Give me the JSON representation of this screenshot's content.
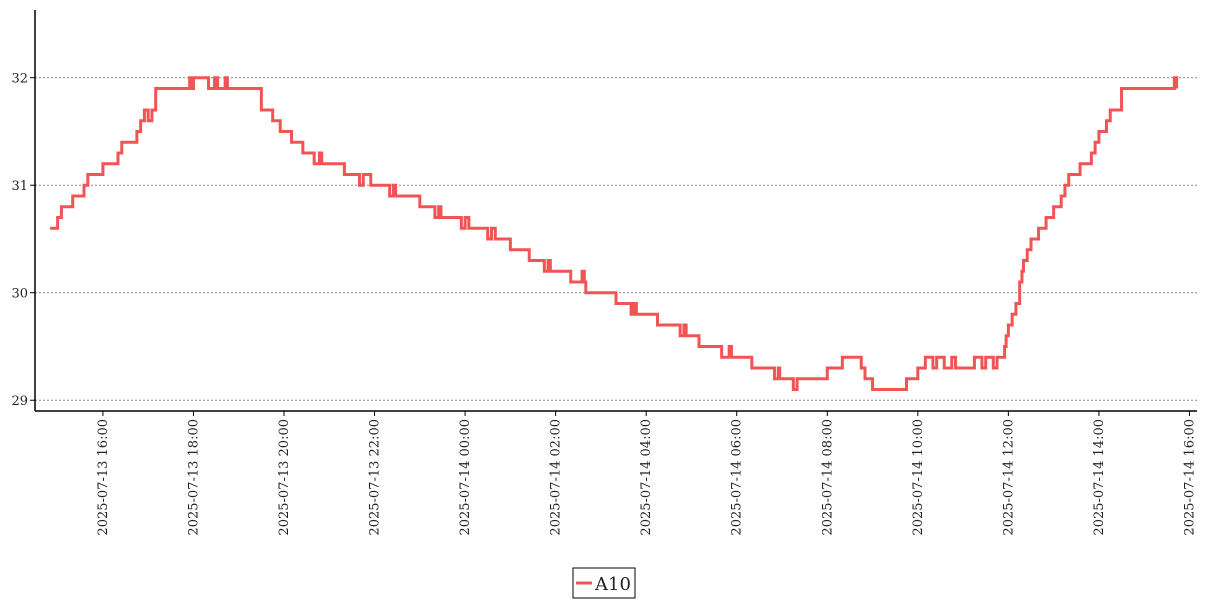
{
  "chart_data": {
    "type": "line",
    "title": "",
    "xlabel": "",
    "ylabel": "",
    "ylim": [
      28.9,
      32.63
    ],
    "xlim": [
      "2025-07-13 14:30",
      "2025-07-14 16:10"
    ],
    "grid": {
      "y": true,
      "x": false,
      "style": "dotted"
    },
    "legend_position": "bottom-center",
    "y_ticks": [
      29,
      30,
      31,
      32
    ],
    "x_ticks": [
      "2025-07-13 16:00",
      "2025-07-13 18:00",
      "2025-07-13 20:00",
      "2025-07-13 22:00",
      "2025-07-14 00:00",
      "2025-07-14 02:00",
      "2025-07-14 04:00",
      "2025-07-14 06:00",
      "2025-07-14 08:00",
      "2025-07-14 10:00",
      "2025-07-14 12:00",
      "2025-07-14 14:00",
      "2025-07-14 16:00"
    ],
    "series": [
      {
        "name": "A10",
        "color": "#f05454",
        "step": true,
        "points": [
          [
            "2025-07-13 14:50",
            30.6
          ],
          [
            "2025-07-13 15:00",
            30.7
          ],
          [
            "2025-07-13 15:05",
            30.8
          ],
          [
            "2025-07-13 15:20",
            30.9
          ],
          [
            "2025-07-13 15:35",
            31.0
          ],
          [
            "2025-07-13 15:40",
            31.1
          ],
          [
            "2025-07-13 16:00",
            31.2
          ],
          [
            "2025-07-13 16:20",
            31.3
          ],
          [
            "2025-07-13 16:25",
            31.4
          ],
          [
            "2025-07-13 16:45",
            31.5
          ],
          [
            "2025-07-13 16:50",
            31.6
          ],
          [
            "2025-07-13 16:55",
            31.7
          ],
          [
            "2025-07-13 17:00",
            31.6
          ],
          [
            "2025-07-13 17:05",
            31.7
          ],
          [
            "2025-07-13 17:10",
            31.9
          ],
          [
            "2025-07-13 17:55",
            32.0
          ],
          [
            "2025-07-13 17:57",
            31.9
          ],
          [
            "2025-07-13 18:00",
            32.0
          ],
          [
            "2025-07-13 18:20",
            31.9
          ],
          [
            "2025-07-13 18:28",
            32.0
          ],
          [
            "2025-07-13 18:32",
            31.9
          ],
          [
            "2025-07-13 18:42",
            32.0
          ],
          [
            "2025-07-13 18:45",
            31.9
          ],
          [
            "2025-07-13 19:30",
            31.7
          ],
          [
            "2025-07-13 19:45",
            31.6
          ],
          [
            "2025-07-13 19:55",
            31.5
          ],
          [
            "2025-07-13 20:10",
            31.4
          ],
          [
            "2025-07-13 20:25",
            31.3
          ],
          [
            "2025-07-13 20:40",
            31.2
          ],
          [
            "2025-07-13 20:47",
            31.3
          ],
          [
            "2025-07-13 20:50",
            31.2
          ],
          [
            "2025-07-13 21:20",
            31.1
          ],
          [
            "2025-07-13 21:40",
            31.0
          ],
          [
            "2025-07-13 21:45",
            31.1
          ],
          [
            "2025-07-13 21:55",
            31.0
          ],
          [
            "2025-07-13 22:20",
            30.9
          ],
          [
            "2025-07-13 22:25",
            31.0
          ],
          [
            "2025-07-13 22:28",
            30.9
          ],
          [
            "2025-07-13 23:00",
            30.8
          ],
          [
            "2025-07-13 23:20",
            30.7
          ],
          [
            "2025-07-13 23:25",
            30.8
          ],
          [
            "2025-07-13 23:28",
            30.7
          ],
          [
            "2025-07-13 23:55",
            30.6
          ],
          [
            "2025-07-14 00:00",
            30.7
          ],
          [
            "2025-07-14 00:05",
            30.6
          ],
          [
            "2025-07-14 00:30",
            30.5
          ],
          [
            "2025-07-14 00:35",
            30.6
          ],
          [
            "2025-07-14 00:40",
            30.5
          ],
          [
            "2025-07-14 01:00",
            30.4
          ],
          [
            "2025-07-14 01:25",
            30.3
          ],
          [
            "2025-07-14 01:45",
            30.2
          ],
          [
            "2025-07-14 01:50",
            30.3
          ],
          [
            "2025-07-14 01:53",
            30.2
          ],
          [
            "2025-07-14 02:20",
            30.1
          ],
          [
            "2025-07-14 02:35",
            30.2
          ],
          [
            "2025-07-14 02:38",
            30.1
          ],
          [
            "2025-07-14 02:40",
            30.0
          ],
          [
            "2025-07-14 03:20",
            29.9
          ],
          [
            "2025-07-14 03:40",
            29.8
          ],
          [
            "2025-07-14 03:43",
            29.9
          ],
          [
            "2025-07-14 03:47",
            29.8
          ],
          [
            "2025-07-14 04:15",
            29.7
          ],
          [
            "2025-07-14 04:45",
            29.6
          ],
          [
            "2025-07-14 04:50",
            29.7
          ],
          [
            "2025-07-14 04:53",
            29.6
          ],
          [
            "2025-07-14 05:10",
            29.5
          ],
          [
            "2025-07-14 05:40",
            29.4
          ],
          [
            "2025-07-14 05:50",
            29.5
          ],
          [
            "2025-07-14 05:53",
            29.4
          ],
          [
            "2025-07-14 06:20",
            29.3
          ],
          [
            "2025-07-14 06:50",
            29.2
          ],
          [
            "2025-07-14 06:55",
            29.3
          ],
          [
            "2025-07-14 06:57",
            29.2
          ],
          [
            "2025-07-14 07:15",
            29.1
          ],
          [
            "2025-07-14 07:20",
            29.2
          ],
          [
            "2025-07-14 08:00",
            29.3
          ],
          [
            "2025-07-14 08:20",
            29.4
          ],
          [
            "2025-07-14 08:45",
            29.3
          ],
          [
            "2025-07-14 08:50",
            29.2
          ],
          [
            "2025-07-14 09:00",
            29.1
          ],
          [
            "2025-07-14 09:45",
            29.2
          ],
          [
            "2025-07-14 10:00",
            29.3
          ],
          [
            "2025-07-14 10:10",
            29.4
          ],
          [
            "2025-07-14 10:20",
            29.3
          ],
          [
            "2025-07-14 10:25",
            29.4
          ],
          [
            "2025-07-14 10:35",
            29.3
          ],
          [
            "2025-07-14 10:45",
            29.4
          ],
          [
            "2025-07-14 10:50",
            29.3
          ],
          [
            "2025-07-14 11:15",
            29.4
          ],
          [
            "2025-07-14 11:25",
            29.3
          ],
          [
            "2025-07-14 11:30",
            29.4
          ],
          [
            "2025-07-14 11:40",
            29.3
          ],
          [
            "2025-07-14 11:45",
            29.4
          ],
          [
            "2025-07-14 11:55",
            29.5
          ],
          [
            "2025-07-14 11:57",
            29.6
          ],
          [
            "2025-07-14 12:00",
            29.7
          ],
          [
            "2025-07-14 12:05",
            29.8
          ],
          [
            "2025-07-14 12:10",
            29.9
          ],
          [
            "2025-07-14 12:15",
            30.1
          ],
          [
            "2025-07-14 12:18",
            30.2
          ],
          [
            "2025-07-14 12:20",
            30.3
          ],
          [
            "2025-07-14 12:25",
            30.4
          ],
          [
            "2025-07-14 12:30",
            30.5
          ],
          [
            "2025-07-14 12:40",
            30.6
          ],
          [
            "2025-07-14 12:50",
            30.7
          ],
          [
            "2025-07-14 13:00",
            30.8
          ],
          [
            "2025-07-14 13:10",
            30.9
          ],
          [
            "2025-07-14 13:15",
            31.0
          ],
          [
            "2025-07-14 13:20",
            31.1
          ],
          [
            "2025-07-14 13:35",
            31.2
          ],
          [
            "2025-07-14 13:50",
            31.3
          ],
          [
            "2025-07-14 13:55",
            31.4
          ],
          [
            "2025-07-14 14:00",
            31.5
          ],
          [
            "2025-07-14 14:10",
            31.6
          ],
          [
            "2025-07-14 14:15",
            31.7
          ],
          [
            "2025-07-14 14:30",
            31.9
          ],
          [
            "2025-07-14 15:40",
            32.0
          ],
          [
            "2025-07-14 15:43",
            31.9
          ]
        ]
      }
    ]
  }
}
